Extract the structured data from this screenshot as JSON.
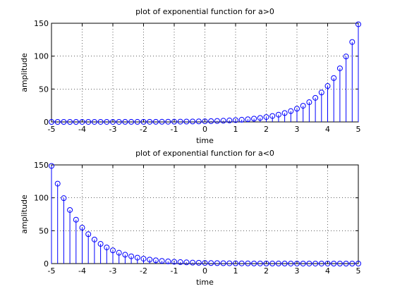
{
  "style": {
    "stem_color": "#0000ff",
    "axis_color": "#000000",
    "grid_color": "#000000",
    "background": "#ffffff"
  },
  "chart_data": [
    {
      "type": "stem",
      "title": "plot of exponential function for a>0",
      "xlabel": "time",
      "ylabel": "amplitude",
      "xlim": [
        -5,
        5
      ],
      "ylim": [
        0,
        150
      ],
      "xticks": [
        -5,
        -4,
        -3,
        -2,
        -1,
        0,
        1,
        2,
        3,
        4,
        5
      ],
      "yticks": [
        0,
        50,
        100,
        150
      ],
      "grid": true,
      "function": "y = exp(a*t), a > 0",
      "x": [
        -5.0,
        -4.8,
        -4.6,
        -4.4,
        -4.2,
        -4.0,
        -3.8,
        -3.6,
        -3.4,
        -3.2,
        -3.0,
        -2.8,
        -2.6,
        -2.4,
        -2.2,
        -2.0,
        -1.8,
        -1.6,
        -1.4,
        -1.2,
        -1.0,
        -0.8,
        -0.6,
        -0.4,
        -0.2,
        0.0,
        0.2,
        0.4,
        0.6,
        0.8,
        1.0,
        1.2,
        1.4,
        1.6,
        1.8,
        2.0,
        2.2,
        2.4,
        2.6,
        2.8,
        3.0,
        3.2,
        3.4,
        3.6,
        3.8,
        4.0,
        4.2,
        4.4,
        4.6,
        4.8,
        5.0
      ],
      "y": [
        0.01,
        0.01,
        0.01,
        0.01,
        0.01,
        0.02,
        0.02,
        0.03,
        0.03,
        0.04,
        0.05,
        0.06,
        0.07,
        0.09,
        0.11,
        0.14,
        0.17,
        0.2,
        0.25,
        0.3,
        0.37,
        0.45,
        0.55,
        0.67,
        0.82,
        1.0,
        1.22,
        1.49,
        1.82,
        2.23,
        2.72,
        3.32,
        4.06,
        4.95,
        6.05,
        7.39,
        9.03,
        11.02,
        13.46,
        16.44,
        20.09,
        24.53,
        29.96,
        36.6,
        44.7,
        54.6,
        66.69,
        81.45,
        99.48,
        121.51,
        148.41
      ]
    },
    {
      "type": "stem",
      "title": "plot of exponential function for a<0",
      "xlabel": "time",
      "ylabel": "amplitude",
      "xlim": [
        -5,
        5
      ],
      "ylim": [
        0,
        150
      ],
      "xticks": [
        -5,
        -4,
        -3,
        -2,
        -1,
        0,
        1,
        2,
        3,
        4,
        5
      ],
      "yticks": [
        0,
        50,
        100,
        150
      ],
      "grid": true,
      "function": "y = exp(a*t), a < 0",
      "x": [
        -5.0,
        -4.8,
        -4.6,
        -4.4,
        -4.2,
        -4.0,
        -3.8,
        -3.6,
        -3.4,
        -3.2,
        -3.0,
        -2.8,
        -2.6,
        -2.4,
        -2.2,
        -2.0,
        -1.8,
        -1.6,
        -1.4,
        -1.2,
        -1.0,
        -0.8,
        -0.6,
        -0.4,
        -0.2,
        0.0,
        0.2,
        0.4,
        0.6,
        0.8,
        1.0,
        1.2,
        1.4,
        1.6,
        1.8,
        2.0,
        2.2,
        2.4,
        2.6,
        2.8,
        3.0,
        3.2,
        3.4,
        3.6,
        3.8,
        4.0,
        4.2,
        4.4,
        4.6,
        4.8,
        5.0
      ],
      "y": [
        148.41,
        121.51,
        99.48,
        81.45,
        66.69,
        54.6,
        44.7,
        36.6,
        29.96,
        24.53,
        20.09,
        16.44,
        13.46,
        11.02,
        9.03,
        7.39,
        6.05,
        4.95,
        4.06,
        3.32,
        2.72,
        2.23,
        1.82,
        1.49,
        1.22,
        1.0,
        0.82,
        0.67,
        0.55,
        0.45,
        0.37,
        0.3,
        0.25,
        0.2,
        0.17,
        0.14,
        0.11,
        0.09,
        0.07,
        0.06,
        0.05,
        0.04,
        0.03,
        0.03,
        0.02,
        0.02,
        0.01,
        0.01,
        0.01,
        0.01,
        0.01
      ]
    }
  ]
}
